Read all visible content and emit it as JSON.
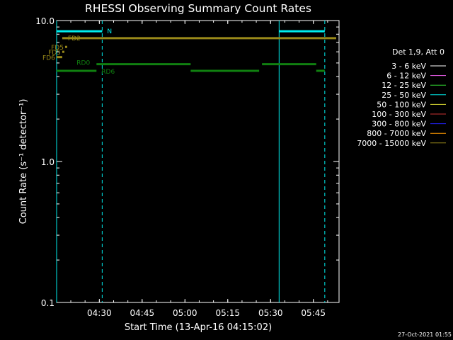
{
  "chart_data": {
    "type": "line",
    "title": "RHESSI Observing Summary Count Rates",
    "xlabel": "Start Time (13-Apr-16 04:15:02)",
    "ylabel": "Count Rate (s⁻¹ detector⁻¹)",
    "yscale": "log",
    "ylim": [
      0.1,
      10.0
    ],
    "xlim": [
      "04:15:02",
      "05:54:00"
    ],
    "x_ticks": [
      "04:30",
      "04:45",
      "05:00",
      "05:15",
      "05:30",
      "05:45"
    ],
    "y_ticks": [
      "0.1",
      "1.0",
      "10.0"
    ],
    "grid": false,
    "legend": {
      "placement": "right",
      "title": "Det 1,9, Att 0",
      "entries": [
        {
          "label": "3 - 6 keV",
          "color": "#ffffff"
        },
        {
          "label": "6 - 12 keV",
          "color": "#ff66ff"
        },
        {
          "label": "12 - 25 keV",
          "color": "#33dd33"
        },
        {
          "label": "25 - 50 keV",
          "color": "#00eeee"
        },
        {
          "label": "50 - 100 keV",
          "color": "#dddd33"
        },
        {
          "label": "100 - 300 keV",
          "color": "#cc3333"
        },
        {
          "label": "300 - 800 keV",
          "color": "#2222ff"
        },
        {
          "label": "800 - 7000 keV",
          "color": "#ff9900"
        },
        {
          "label": "7000 - 15000 keV",
          "color": "#9a8a1a"
        }
      ]
    },
    "series": [
      {
        "label": "FD2",
        "color": "#9a8a1a",
        "segments": [
          {
            "x": [
              "04:17",
              "05:53"
            ],
            "y": 7.5
          }
        ]
      },
      {
        "label": "FD5",
        "color": "#9a8a1a",
        "segments": [
          {
            "x": [
              "04:18",
              "04:18"
            ],
            "y": 6.5
          }
        ]
      },
      {
        "label": "FD5",
        "color": "#9a8a1a",
        "segments": [
          {
            "x": [
              "04:17",
              "04:17"
            ],
            "y": 6.0
          }
        ]
      },
      {
        "label": "FD6",
        "color": "#9a8a1a",
        "segments": [
          {
            "x": [
              "04:15",
              "04:17"
            ],
            "y": 5.5
          }
        ]
      },
      {
        "label": "RD0",
        "color": "#108010",
        "segments": [
          {
            "x": [
              "04:29",
              "05:02"
            ],
            "y": 4.9
          },
          {
            "x": [
              "05:27",
              "05:46"
            ],
            "y": 4.9
          }
        ]
      },
      {
        "label": "RD6",
        "color": "#108010",
        "segments": [
          {
            "x": [
              "04:15",
              "04:29"
            ],
            "y": 4.4
          },
          {
            "x": [
              "05:02",
              "05:26"
            ],
            "y": 4.4
          },
          {
            "x": [
              "05:46",
              "05:49"
            ],
            "y": 4.4
          }
        ]
      },
      {
        "label": "N",
        "color": "#00eeee",
        "segments": [
          {
            "x": [
              "04:15",
              "04:31"
            ],
            "y": 8.4
          },
          {
            "x": [
              "05:33",
              "05:49"
            ],
            "y": 8.4
          }
        ]
      }
    ],
    "vlines": [
      {
        "x": "04:15:02",
        "color": "#00eeee",
        "style": "solid"
      },
      {
        "x": "04:31",
        "color": "#00eeee",
        "style": "dashed"
      },
      {
        "x": "05:33",
        "color": "#00eeee",
        "style": "solid"
      },
      {
        "x": "05:49",
        "color": "#00eeee",
        "style": "dashed"
      }
    ]
  },
  "footer": {
    "timestamp": "27-Oct-2021 01:55"
  }
}
